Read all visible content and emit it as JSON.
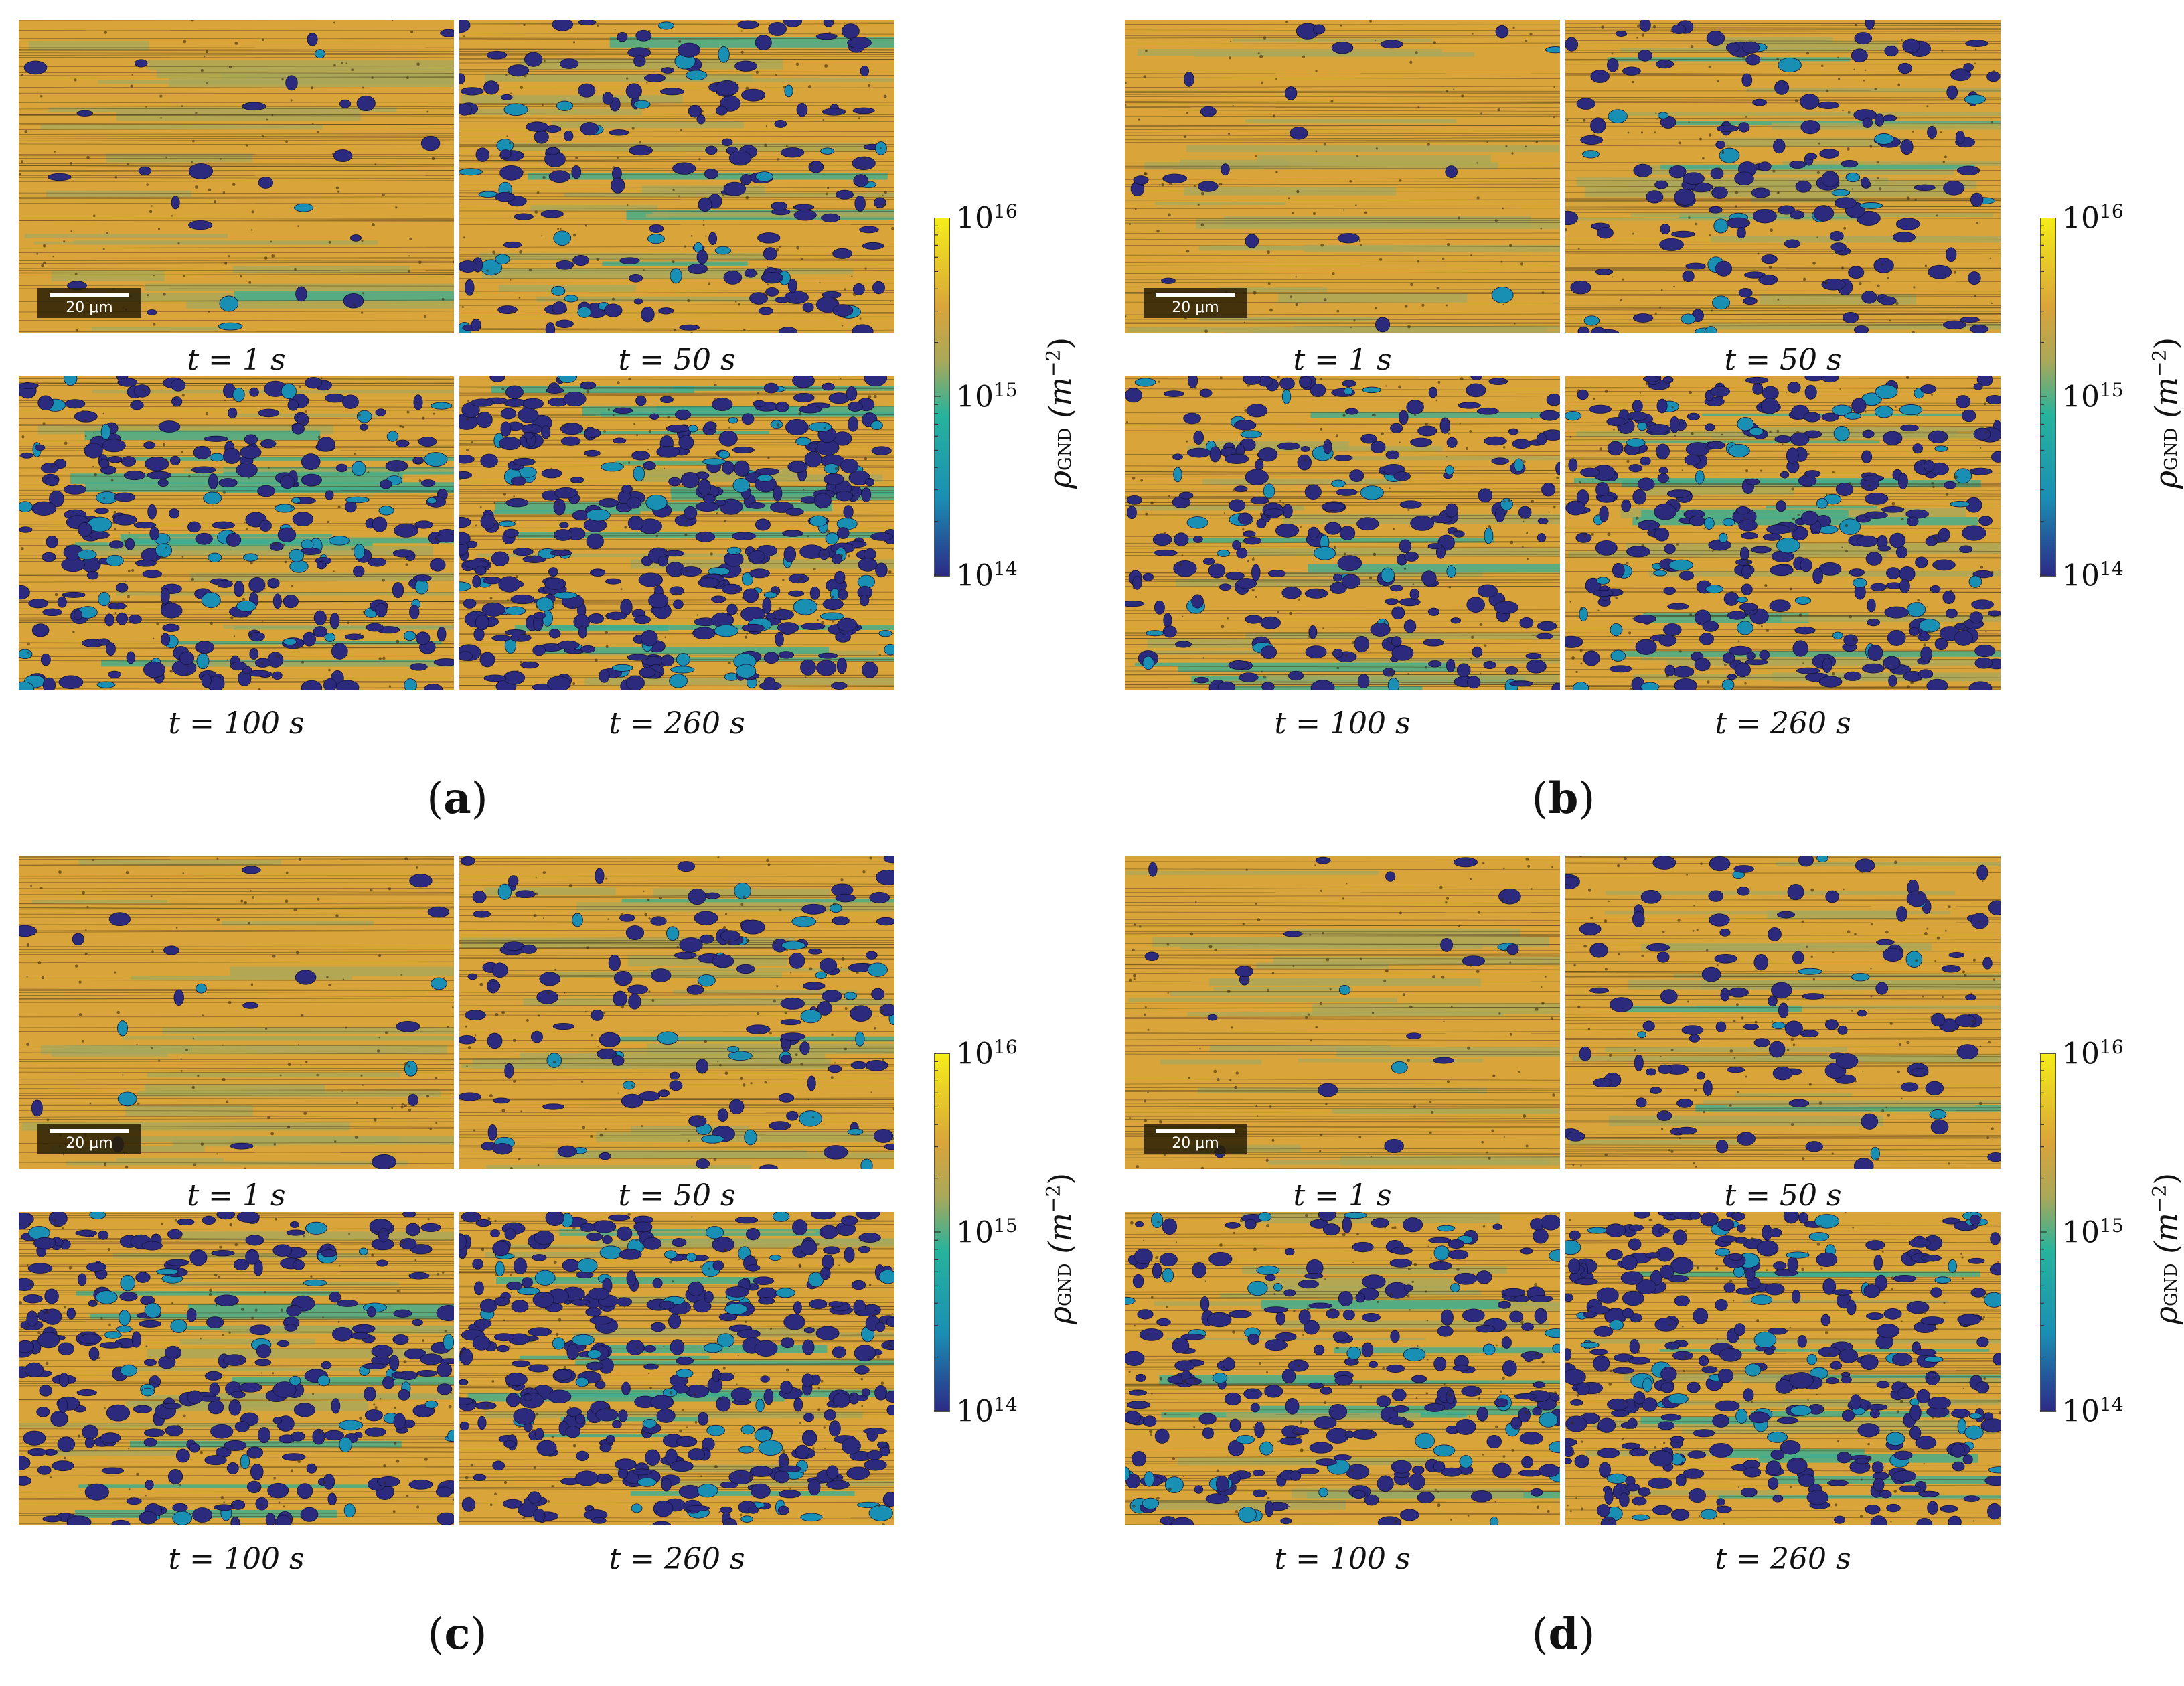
{
  "panels": [
    {
      "id": "a",
      "label": "a",
      "images": [
        {
          "caption": "t = 1 s",
          "level": 0.05
        },
        {
          "caption": "t = 50 s",
          "level": 0.35
        },
        {
          "caption": "t = 100 s",
          "level": 0.55
        },
        {
          "caption": "t = 260 s",
          "level": 0.75
        }
      ],
      "scale_bar": "20 μm",
      "colorbar": {
        "min_label": "10",
        "min_exp": "14",
        "mid_label": "10",
        "mid_exp": "15",
        "max_label": "10",
        "max_exp": "16",
        "title_rho": "ρ",
        "title_sub": "GND",
        "title_unit": "(m",
        "title_unit_exp": "−2",
        "title_close": ")"
      }
    },
    {
      "id": "b",
      "label": "b",
      "images": [
        {
          "caption": "t = 1 s",
          "level": 0.04
        },
        {
          "caption": "t = 50 s",
          "level": 0.3
        },
        {
          "caption": "t = 100 s",
          "level": 0.45
        },
        {
          "caption": "t = 260 s",
          "level": 0.62
        }
      ],
      "scale_bar": "20 μm",
      "colorbar": {
        "min_label": "10",
        "min_exp": "14",
        "mid_label": "10",
        "mid_exp": "15",
        "max_label": "10",
        "max_exp": "16",
        "title_rho": "ρ",
        "title_sub": "GND",
        "title_unit": "(m",
        "title_unit_exp": "−2",
        "title_close": ")"
      }
    },
    {
      "id": "c",
      "label": "c",
      "images": [
        {
          "caption": "t = 1 s",
          "level": 0.04
        },
        {
          "caption": "t = 50 s",
          "level": 0.28
        },
        {
          "caption": "t = 100 s",
          "level": 0.55
        },
        {
          "caption": "t = 260 s",
          "level": 0.72
        }
      ],
      "scale_bar": "20 μm",
      "colorbar": {
        "min_label": "10",
        "min_exp": "14",
        "mid_label": "10",
        "mid_exp": "15",
        "max_label": "10",
        "max_exp": "16",
        "title_rho": "ρ",
        "title_sub": "GND",
        "title_unit": "(m",
        "title_unit_exp": "−2",
        "title_close": ")"
      }
    },
    {
      "id": "d",
      "label": "d",
      "images": [
        {
          "caption": "t = 1 s",
          "level": 0.04
        },
        {
          "caption": "t = 50 s",
          "level": 0.22
        },
        {
          "caption": "t = 100 s",
          "level": 0.5
        },
        {
          "caption": "t = 260 s",
          "level": 0.68
        }
      ],
      "scale_bar": "20 μm",
      "colorbar": {
        "min_label": "10",
        "min_exp": "14",
        "mid_label": "10",
        "mid_exp": "15",
        "max_label": "10",
        "max_exp": "16",
        "title_rho": "ρ",
        "title_sub": "GND",
        "title_unit": "(m",
        "title_unit_exp": "−2",
        "title_close": ")"
      }
    }
  ],
  "colors": {
    "high": "#d9a43a",
    "mid_high": "#a9a85a",
    "mid": "#3fae8e",
    "mid_low": "#1a8fb4",
    "low": "#2b2a7c",
    "cbar_top": "#f5ec1a",
    "cbar_mid": "#27b39c",
    "cbar_bottom": "#2c2a85"
  }
}
